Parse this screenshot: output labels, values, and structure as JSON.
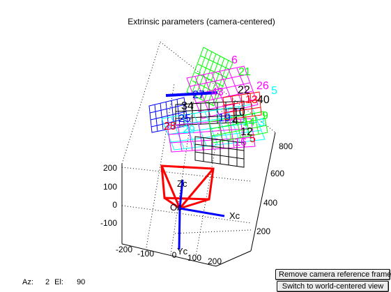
{
  "figure": {
    "title": "Extrinsic parameters (camera-centered)"
  },
  "axes": {
    "y_ticks": [
      "200",
      "100",
      "0",
      "-100"
    ],
    "x_ticks": [
      "-200",
      "-100",
      "0",
      "100",
      "200"
    ],
    "z_ticks": [
      "800",
      "600",
      "400",
      "200"
    ],
    "camera_labels": {
      "origin": "Oc",
      "x": "Xc",
      "y": "Yc",
      "z": "Zc"
    }
  },
  "board_labels": [
    {
      "text": "6",
      "color": "#ff00ff"
    },
    {
      "text": "21",
      "color": "#00ff00"
    },
    {
      "text": "26",
      "color": "#ff00ff"
    },
    {
      "text": "5",
      "color": "#00ffff"
    },
    {
      "text": "22",
      "color": "#000000"
    },
    {
      "text": "13",
      "color": "#ff0000"
    },
    {
      "text": "40",
      "color": "#000000"
    },
    {
      "text": "43",
      "color": "#ff00ff"
    },
    {
      "text": "27",
      "color": "#0000ff"
    },
    {
      "text": "34",
      "color": "#000000"
    },
    {
      "text": "10",
      "color": "#000000"
    },
    {
      "text": "9",
      "color": "#00ff00"
    },
    {
      "text": "25",
      "color": "#0000ff"
    },
    {
      "text": "19",
      "color": "#0000ff"
    },
    {
      "text": "4",
      "color": "#000000"
    },
    {
      "text": "14",
      "color": "#00ff00"
    },
    {
      "text": "3",
      "color": "#00ffff"
    },
    {
      "text": "28",
      "color": "#ff0000"
    },
    {
      "text": "29",
      "color": "#00ffff"
    },
    {
      "text": "16",
      "color": "#ff00ff"
    },
    {
      "text": "5",
      "color": "#ff0000"
    },
    {
      "text": "12",
      "color": "#000000"
    }
  ],
  "status": {
    "az_label": "Az:",
    "az_value": "2",
    "el_label": "El:",
    "el_value": "90"
  },
  "buttons": {
    "remove_label": "Remove camera reference frame",
    "switch_label": "Switch to world-centered view"
  },
  "colors": {
    "camera": "#ff0000",
    "axes_arrows": "#0000ff"
  }
}
